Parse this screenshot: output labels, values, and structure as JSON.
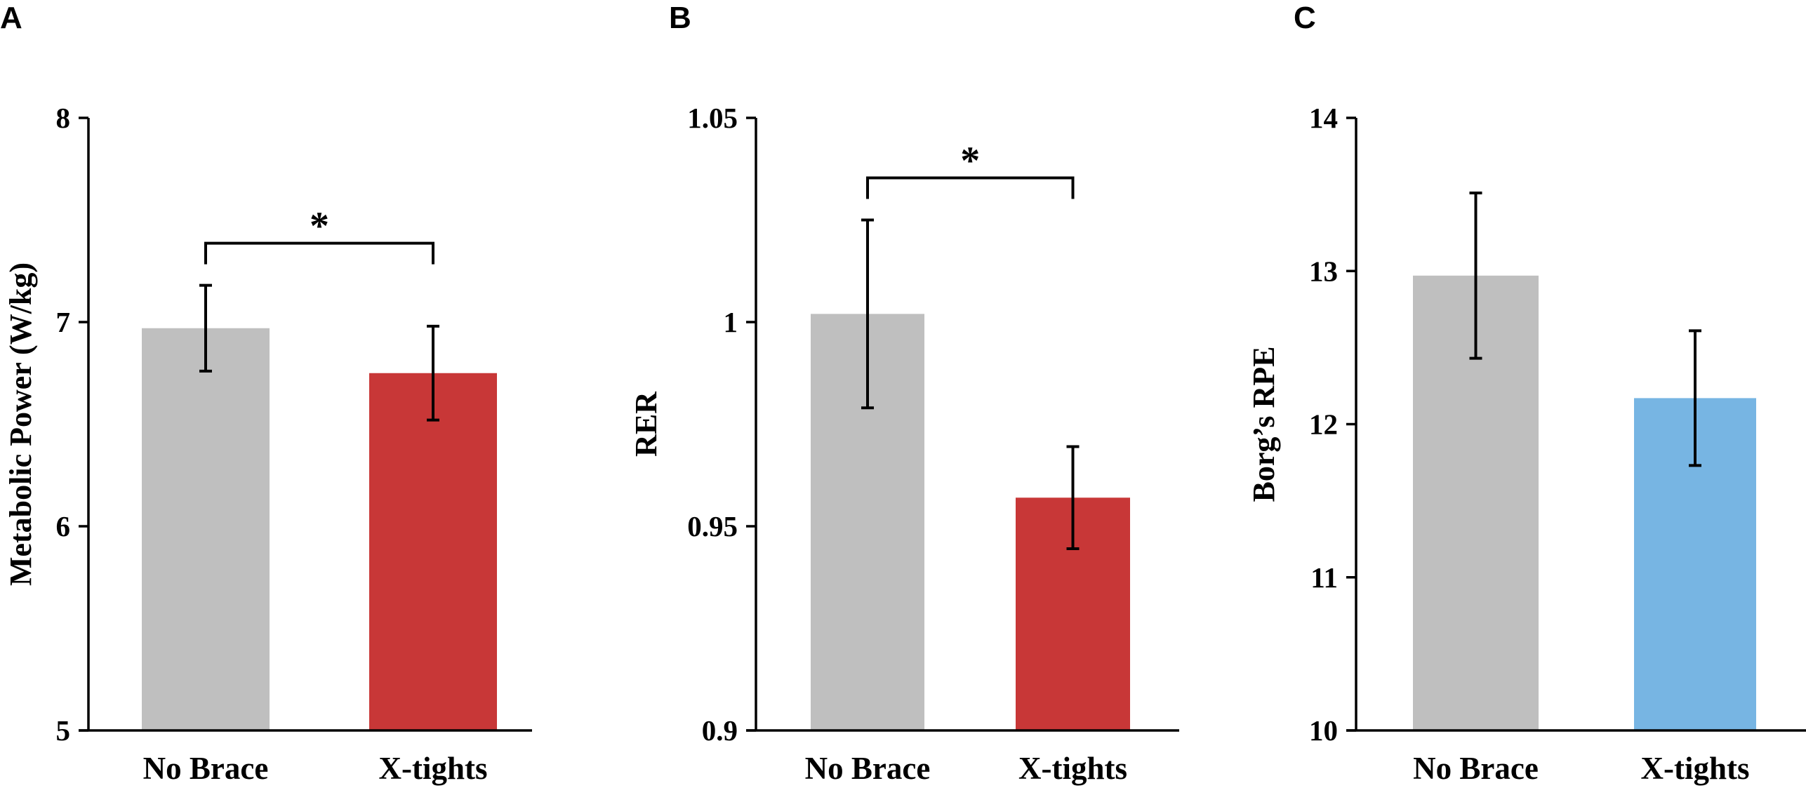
{
  "chart_data": [
    {
      "panel": "A",
      "type": "bar",
      "ylabel": "Metabolic Power (W/kg)",
      "ylim": [
        5,
        8
      ],
      "yticks": [
        "5",
        "6",
        "7",
        "8"
      ],
      "categories": [
        "No Brace",
        "X-tights"
      ],
      "values": [
        6.97,
        6.75
      ],
      "errors": [
        0.21,
        0.23
      ],
      "colors": [
        "#bfbfbf",
        "#c83737"
      ],
      "significance": {
        "label": "*",
        "between": [
          0,
          1
        ]
      }
    },
    {
      "panel": "B",
      "type": "bar",
      "ylabel": "RER",
      "ylim": [
        0.9,
        1.05
      ],
      "yticks": [
        "0.9",
        "0.95",
        "1",
        "1.05"
      ],
      "categories": [
        "No Brace",
        "X-tights"
      ],
      "values": [
        1.002,
        0.957
      ],
      "errors": [
        0.023,
        0.0125
      ],
      "colors": [
        "#bfbfbf",
        "#c83737"
      ],
      "significance": {
        "label": "*",
        "between": [
          0,
          1
        ]
      }
    },
    {
      "panel": "C",
      "type": "bar",
      "ylabel": "Borg’s RPE",
      "ylim": [
        10,
        14
      ],
      "yticks": [
        "10",
        "11",
        "12",
        "13",
        "14"
      ],
      "categories": [
        "No Brace",
        "X-tights"
      ],
      "values": [
        12.97,
        12.17
      ],
      "errors": [
        0.54,
        0.44
      ],
      "colors": [
        "#bfbfbf",
        "#77b5e3"
      ],
      "significance": null
    }
  ]
}
